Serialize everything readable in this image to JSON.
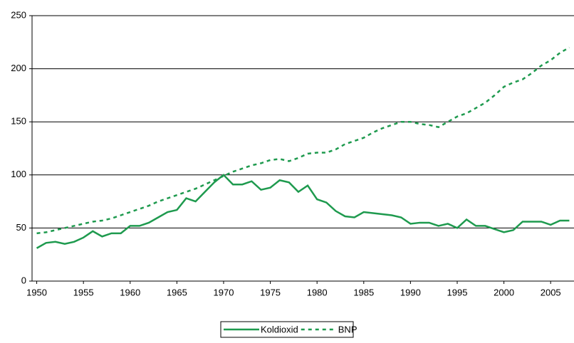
{
  "chart_data": {
    "type": "line",
    "x": [
      1950,
      1951,
      1952,
      1953,
      1954,
      1955,
      1956,
      1957,
      1958,
      1959,
      1960,
      1961,
      1962,
      1963,
      1964,
      1965,
      1966,
      1967,
      1968,
      1969,
      1970,
      1971,
      1972,
      1973,
      1974,
      1975,
      1976,
      1977,
      1978,
      1979,
      1980,
      1981,
      1982,
      1983,
      1984,
      1985,
      1986,
      1987,
      1988,
      1989,
      1990,
      1991,
      1992,
      1993,
      1994,
      1995,
      1996,
      1997,
      1998,
      1999,
      2000,
      2001,
      2002,
      2003,
      2004,
      2005,
      2006,
      2007
    ],
    "series": [
      {
        "name": "Koldioxid",
        "color": "#1e9a4e",
        "dash": false,
        "values": [
          31,
          36,
          37,
          35,
          37,
          41,
          47,
          42,
          45,
          45,
          52,
          52,
          55,
          60,
          65,
          67,
          78,
          75,
          84,
          93,
          100,
          91,
          91,
          94,
          86,
          88,
          95,
          93,
          84,
          90,
          77,
          74,
          66,
          61,
          60,
          65,
          64,
          63,
          62,
          60,
          54,
          55,
          55,
          52,
          54,
          50,
          58,
          52,
          52,
          49,
          46,
          48,
          56,
          56,
          56,
          53,
          57,
          57
        ]
      },
      {
        "name": "BNP",
        "color": "#1e9a4e",
        "dash": true,
        "values": [
          45,
          46,
          48,
          50,
          52,
          54,
          56,
          57,
          59,
          62,
          65,
          68,
          71,
          75,
          78,
          81,
          84,
          87,
          91,
          95,
          99,
          103,
          106,
          109,
          111,
          114,
          115,
          113,
          116,
          120,
          121,
          121,
          124,
          129,
          132,
          135,
          140,
          144,
          147,
          150,
          150,
          148,
          147,
          145,
          150,
          155,
          158,
          163,
          168,
          175,
          183,
          187,
          190,
          196,
          203,
          208,
          215,
          220
        ]
      }
    ],
    "xlim": [
      1949.5,
      2007.5
    ],
    "xticks": [
      1950,
      1955,
      1960,
      1965,
      1970,
      1975,
      1980,
      1985,
      1990,
      1995,
      2000,
      2005
    ],
    "ylim": [
      0,
      250
    ],
    "yticks": [
      0,
      50,
      100,
      150,
      200,
      250
    ],
    "grid": true,
    "legend": "bottom"
  }
}
